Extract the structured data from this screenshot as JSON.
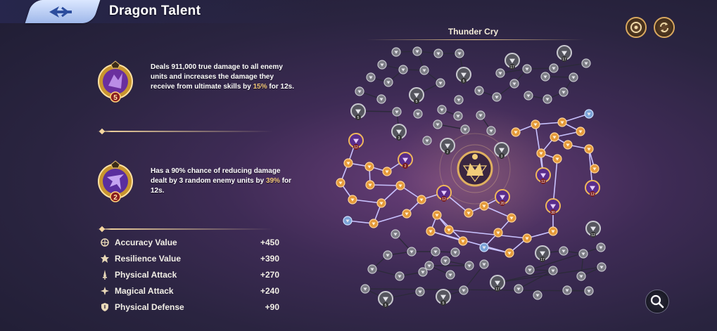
{
  "header": {
    "title": "Dragon Talent",
    "back_icon": "back-arrow-icon"
  },
  "top_actions": [
    {
      "name": "target-icon"
    },
    {
      "name": "reset-cycle-icon"
    }
  ],
  "tree": {
    "title": "Thunder Cry"
  },
  "skills": [
    {
      "level": "5",
      "desc_pre": "Deals 911,000 true damage to all enemy units and increases the damage they receive from ultimate skills by ",
      "desc_hl": "15%",
      "desc_post": " for 12s."
    },
    {
      "level": "2",
      "desc_pre": "Has a 90% chance of reducing damage dealt by 3 random enemy units by ",
      "desc_hl": "39%",
      "desc_post": " for 12s."
    }
  ],
  "stats": [
    {
      "label": "Accuracy Value",
      "value": "+450",
      "icon": "accuracy-icon"
    },
    {
      "label": "Resilience Value",
      "value": "+390",
      "icon": "resilience-icon"
    },
    {
      "label": "Physical Attack",
      "value": "+270",
      "icon": "sword-icon"
    },
    {
      "label": "Magical Attack",
      "value": "+240",
      "icon": "magic-icon"
    },
    {
      "label": "Physical Defense",
      "value": "+90",
      "icon": "shield-icon"
    }
  ],
  "node_badges": [
    "17",
    "17",
    "5",
    "5",
    "5",
    "3",
    "2",
    "3",
    "12",
    "2",
    "12",
    "20",
    "12",
    "30",
    "12",
    "12"
  ],
  "colors": {
    "active_node": "#e59a3a",
    "inactive_node": "#7d7d86",
    "special_node": "#7aa2d6",
    "link_active": "#c9c3ff",
    "link_inactive": "#2c2a3a",
    "highlight_text": "#f3c77a"
  }
}
